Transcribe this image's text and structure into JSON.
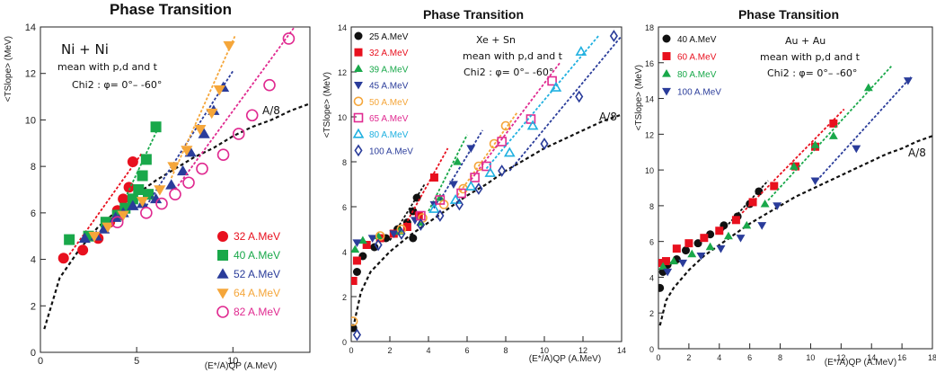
{
  "chart_data": [
    {
      "type": "scatter",
      "title": "Phase Transition",
      "xlabel": "(E*/A)QP (A.MeV)",
      "ylabel": "<TSlope> (MeV)",
      "xlim": [
        0,
        14
      ],
      "ylim": [
        0,
        14
      ],
      "xticks": [
        0,
        5,
        10
      ],
      "yticks": [
        0,
        2,
        4,
        6,
        8,
        10,
        12,
        14
      ],
      "grid": false,
      "legend_position": "bottom-right",
      "annotations": [
        "Ni + Ni",
        "mean with p,d and t",
        "Chi2 : φ= 0°– -60°"
      ],
      "curve": {
        "label": "A/8",
        "x": [
          0.2,
          1,
          2,
          3,
          4,
          5,
          6,
          7,
          8,
          9,
          10,
          11,
          12,
          13,
          14
        ],
        "y": [
          1.0,
          3.2,
          4.4,
          5.4,
          6.1,
          6.8,
          7.4,
          7.9,
          8.4,
          8.8,
          9.3,
          9.7,
          10.0,
          10.4,
          10.7
        ]
      },
      "series": [
        {
          "name": "32 A.MeV",
          "color": "#e8101e",
          "marker": "circle",
          "x": [
            1.2,
            2.2,
            3.0,
            3.6,
            4.0,
            4.3,
            4.6,
            4.8
          ],
          "y": [
            4.05,
            4.4,
            4.9,
            5.6,
            6.1,
            6.6,
            7.1,
            8.2
          ],
          "fit": [
            [
              1.5,
              4.2
            ],
            [
              5.3,
              8.6
            ]
          ]
        },
        {
          "name": "40 A.MeV",
          "color": "#19a84a",
          "marker": "square",
          "x": [
            1.5,
            2.5,
            3.4,
            4.0,
            4.4,
            4.8,
            5.1,
            5.3,
            5.5,
            5.6,
            6.0
          ],
          "y": [
            4.85,
            5.0,
            5.6,
            5.9,
            6.2,
            6.6,
            7.0,
            7.6,
            8.3,
            6.8,
            9.7
          ],
          "fit": [
            [
              4.5,
              6.8
            ],
            [
              6.2,
              9.8
            ]
          ]
        },
        {
          "name": "52 A.MeV",
          "color": "#2a3c9a",
          "marker": "triangle",
          "x": [
            2.3,
            2.9,
            3.3,
            3.9,
            4.3,
            4.8,
            5.3,
            6.0,
            6.8,
            7.4,
            7.8,
            8.5,
            9.0,
            9.5
          ],
          "y": [
            4.9,
            5.0,
            5.3,
            5.8,
            6.0,
            6.3,
            6.4,
            6.6,
            7.2,
            7.8,
            8.6,
            9.4,
            10.4,
            11.4
          ],
          "fit": [
            [
              5.5,
              6.3
            ],
            [
              10.0,
              12.1
            ]
          ]
        },
        {
          "name": "64 A.MeV",
          "color": "#f5a63a",
          "marker": "triangle-down",
          "x": [
            2.8,
            3.5,
            4.3,
            5.3,
            6.2,
            6.9,
            7.6,
            8.3,
            8.9,
            9.3,
            9.8
          ],
          "y": [
            5.0,
            5.4,
            5.9,
            6.5,
            7.0,
            8.0,
            8.7,
            9.6,
            10.3,
            11.3,
            13.2
          ],
          "fit": [
            [
              6.8,
              7.5
            ],
            [
              10.1,
              13.6
            ]
          ]
        },
        {
          "name": "82 A.MeV",
          "color": "#e02a90",
          "marker": "circle-open",
          "x": [
            4.0,
            5.5,
            6.3,
            7.0,
            7.7,
            8.4,
            9.5,
            10.3,
            11.0,
            11.9,
            12.9
          ],
          "y": [
            5.6,
            6.0,
            6.4,
            6.8,
            7.3,
            7.9,
            8.5,
            9.4,
            10.2,
            11.5,
            13.5
          ],
          "fit": [
            [
              7.0,
              7.0
            ],
            [
              13.2,
              14.0
            ]
          ]
        }
      ]
    },
    {
      "type": "scatter",
      "title": "Phase Transition",
      "xlabel": "(E*/A)QP (A.MeV)",
      "ylabel": "<TSlope> (MeV)",
      "xlim": [
        0,
        14
      ],
      "ylim": [
        0,
        14
      ],
      "xticks": [
        0,
        2,
        4,
        6,
        8,
        10,
        12,
        14
      ],
      "yticks": [
        0,
        2,
        4,
        6,
        8,
        10,
        12,
        14
      ],
      "grid": false,
      "legend_position": "top-left",
      "annotations": [
        "Xe + Sn",
        "mean with p,d and t",
        "Chi2 : φ= 0°– -60°"
      ],
      "curve": {
        "label": "A/8",
        "x": [
          0.1,
          0.5,
          1,
          2,
          3,
          4,
          5,
          6,
          7,
          8,
          9,
          10,
          11,
          12,
          13,
          14
        ],
        "y": [
          0.6,
          2.2,
          3.1,
          4.0,
          4.7,
          5.3,
          5.9,
          6.5,
          7.0,
          7.6,
          8.1,
          8.6,
          9.0,
          9.4,
          9.8,
          10.1
        ]
      },
      "series": [
        {
          "name": "25 A.MeV",
          "color": "#111111",
          "marker": "circle",
          "x": [
            0.1,
            0.3,
            0.6,
            1.2,
            1.8,
            2.4,
            2.9,
            3.2,
            3.4,
            3.2
          ],
          "y": [
            0.6,
            3.1,
            3.8,
            4.2,
            4.6,
            5.0,
            5.3,
            5.8,
            6.4,
            4.6
          ],
          "fit": [
            [
              2.0,
              4.5
            ],
            [
              3.8,
              7.0
            ]
          ]
        },
        {
          "name": "32 A.MeV",
          "color": "#e8101e",
          "marker": "square",
          "x": [
            0.1,
            0.3,
            0.8,
            1.5,
            2.2,
            2.9,
            3.5,
            4.3
          ],
          "y": [
            2.7,
            3.6,
            4.3,
            4.6,
            4.8,
            5.1,
            5.6,
            7.3
          ],
          "fit": [
            [
              2.8,
              5.2
            ],
            [
              5.0,
              8.6
            ]
          ]
        },
        {
          "name": "39 A.MeV",
          "color": "#19a84a",
          "marker": "triangle",
          "x": [
            0.2,
            0.6,
            1.4,
            2.5,
            3.6,
            4.6,
            5.5
          ],
          "y": [
            4.1,
            4.5,
            4.7,
            4.9,
            5.3,
            6.4,
            8.0
          ],
          "fit": [
            [
              4.0,
              5.8
            ],
            [
              6.0,
              9.2
            ]
          ]
        },
        {
          "name": "45 A.MeV",
          "color": "#2a3c9a",
          "marker": "triangle-down",
          "x": [
            0.3,
            1.1,
            2.2,
            3.3,
            4.3,
            5.3,
            6.2
          ],
          "y": [
            4.4,
            4.6,
            4.8,
            5.4,
            6.1,
            7.0,
            8.6
          ],
          "fit": [
            [
              4.6,
              6.3
            ],
            [
              6.8,
              9.4
            ]
          ]
        },
        {
          "name": "50 A.MeV",
          "color": "#f5a63a",
          "marker": "circle-open",
          "x": [
            0.1,
            1.5,
            2.6,
            3.7,
            4.8,
            5.8,
            6.6,
            7.4,
            8.0
          ],
          "y": [
            0.9,
            4.7,
            5.0,
            5.5,
            6.1,
            6.8,
            7.8,
            8.8,
            9.6
          ],
          "fit": [
            [
              5.5,
              6.5
            ],
            [
              8.6,
              10.2
            ]
          ]
        },
        {
          "name": "65 A.MeV",
          "color": "#e02a90",
          "marker": "square-open",
          "x": [
            3.6,
            4.6,
            5.7,
            6.4,
            7.0,
            7.8,
            9.3,
            10.4
          ],
          "y": [
            5.6,
            6.3,
            6.6,
            7.3,
            7.8,
            8.9,
            9.9,
            11.6
          ],
          "fit": [
            [
              6.2,
              7.2
            ],
            [
              10.8,
              12.4
            ]
          ]
        },
        {
          "name": "80 A.MeV",
          "color": "#1fb0e0",
          "marker": "triangle-open",
          "x": [
            4.3,
            5.4,
            6.2,
            7.2,
            8.2,
            9.4,
            10.6,
            11.9
          ],
          "y": [
            5.9,
            6.3,
            6.9,
            7.5,
            8.4,
            9.6,
            11.3,
            12.9
          ],
          "fit": [
            [
              7.0,
              7.7
            ],
            [
              12.8,
              13.6
            ]
          ]
        },
        {
          "name": "100 A.MeV",
          "color": "#2a3c9a",
          "marker": "diamond-open",
          "x": [
            0.3,
            1.4,
            2.6,
            3.6,
            4.6,
            5.6,
            6.6,
            7.8,
            10.0,
            11.8,
            13.6
          ],
          "y": [
            0.3,
            4.3,
            4.8,
            5.2,
            5.6,
            6.1,
            6.8,
            7.6,
            8.8,
            10.9,
            13.6
          ],
          "fit": [
            [
              8.2,
              7.6
            ],
            [
              14.0,
              13.6
            ]
          ]
        }
      ]
    },
    {
      "type": "scatter",
      "title": "Phase Transition",
      "xlabel": "(E*/A)QP (A.MeV)",
      "ylabel": "<TSlope> (MeV)",
      "xlim": [
        0,
        18
      ],
      "ylim": [
        0,
        18
      ],
      "xticks": [
        0,
        2,
        4,
        6,
        8,
        10,
        12,
        14,
        16,
        18
      ],
      "yticks": [
        0,
        2,
        4,
        6,
        8,
        10,
        12,
        14,
        16,
        18
      ],
      "grid": false,
      "legend_position": "top-left",
      "annotations": [
        "Au + Au",
        "mean with p,d and t",
        "Chi2 : φ= 0°– -60°"
      ],
      "curve": {
        "label": "A/8",
        "x": [
          0.1,
          0.5,
          1,
          2,
          3,
          4,
          5,
          6,
          7,
          8,
          9,
          10,
          11,
          12,
          13,
          14,
          15,
          16,
          17,
          18
        ],
        "y": [
          1.3,
          2.7,
          3.4,
          4.4,
          5.2,
          5.8,
          6.4,
          7.0,
          7.5,
          8.0,
          8.5,
          8.9,
          9.3,
          9.7,
          10.1,
          10.5,
          10.9,
          11.2,
          11.6,
          11.9
        ]
      },
      "series": [
        {
          "name": "40 A.MeV",
          "color": "#111111",
          "marker": "circle",
          "x": [
            0.1,
            0.3,
            0.6,
            1.2,
            1.8,
            2.6,
            3.4,
            4.3,
            5.2,
            6.0,
            6.6
          ],
          "y": [
            3.4,
            4.3,
            4.7,
            5.0,
            5.5,
            5.9,
            6.4,
            6.9,
            7.4,
            8.1,
            8.8
          ],
          "fit": [
            [
              4.2,
              6.6
            ],
            [
              7.2,
              9.4
            ]
          ]
        },
        {
          "name": "60 A.MeV",
          "color": "#e8101e",
          "marker": "square",
          "x": [
            0.1,
            0.5,
            1.2,
            2.0,
            3.0,
            4.0,
            5.1,
            6.2,
            7.6,
            9.0,
            10.3,
            11.5
          ],
          "y": [
            4.8,
            4.9,
            5.6,
            5.9,
            6.2,
            6.6,
            7.2,
            8.2,
            9.1,
            10.2,
            11.3,
            12.6
          ],
          "fit": [
            [
              5.5,
              7.6
            ],
            [
              12.2,
              13.4
            ]
          ]
        },
        {
          "name": "80 A.MeV",
          "color": "#19a84a",
          "marker": "triangle",
          "x": [
            0.3,
            1.0,
            2.2,
            3.4,
            4.6,
            5.8,
            7.0,
            8.9,
            10.3,
            11.5,
            13.8
          ],
          "y": [
            4.6,
            4.9,
            5.3,
            5.7,
            6.3,
            6.9,
            8.1,
            10.2,
            11.4,
            11.9,
            14.6
          ],
          "fit": [
            [
              7.2,
              8.3
            ],
            [
              15.3,
              15.8
            ]
          ]
        },
        {
          "name": "100 A.MeV",
          "color": "#2a3c9a",
          "marker": "triangle-down",
          "x": [
            0.6,
            1.6,
            2.8,
            4.1,
            5.4,
            6.8,
            7.8,
            10.3,
            13.0,
            16.4
          ],
          "y": [
            4.3,
            4.8,
            5.2,
            5.6,
            6.2,
            6.9,
            8.0,
            9.4,
            11.2,
            15.0
          ],
          "fit": [
            [
              10.4,
              9.4
            ],
            [
              16.6,
              15.2
            ]
          ]
        }
      ]
    }
  ]
}
